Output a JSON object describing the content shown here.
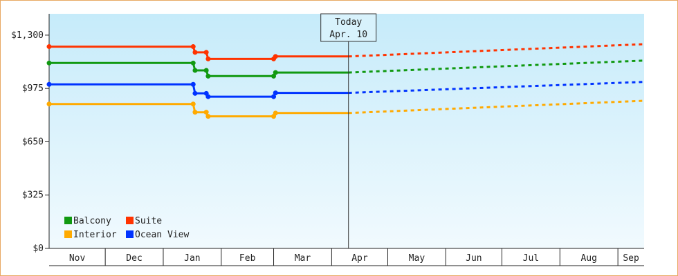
{
  "chart_data": {
    "type": "line",
    "x_range": [
      "2024-11-01",
      "2025-09-15"
    ],
    "ylim": [
      0,
      1430
    ],
    "y_ticks": [
      {
        "value": 0,
        "label": "$0"
      },
      {
        "value": 325,
        "label": "$325"
      },
      {
        "value": 650,
        "label": "$650"
      },
      {
        "value": 975,
        "label": "$975"
      },
      {
        "value": 1300,
        "label": "$1,300"
      }
    ],
    "month_ticks": [
      {
        "label": "Nov",
        "start": "2024-11-01",
        "end": "2024-12-01"
      },
      {
        "label": "Dec",
        "start": "2024-12-01",
        "end": "2025-01-01"
      },
      {
        "label": "Jan",
        "start": "2025-01-01",
        "end": "2025-02-01"
      },
      {
        "label": "Feb",
        "start": "2025-02-01",
        "end": "2025-03-01"
      },
      {
        "label": "Mar",
        "start": "2025-03-01",
        "end": "2025-04-01"
      },
      {
        "label": "Apr",
        "start": "2025-04-01",
        "end": "2025-05-01"
      },
      {
        "label": "May",
        "start": "2025-05-01",
        "end": "2025-06-01"
      },
      {
        "label": "Jun",
        "start": "2025-06-01",
        "end": "2025-07-01"
      },
      {
        "label": "Jul",
        "start": "2025-07-01",
        "end": "2025-08-01"
      },
      {
        "label": "Aug",
        "start": "2025-08-01",
        "end": "2025-09-01"
      },
      {
        "label": "Sep",
        "start": "2025-09-01",
        "end": "2025-09-15"
      }
    ],
    "today": {
      "date": "2025-04-10",
      "line1": "Today",
      "line2": "Apr. 10"
    },
    "grid": false,
    "legend_position": "bottom-left",
    "series": [
      {
        "name": "Suite",
        "color": "#ff3300",
        "points": [
          {
            "date": "2024-11-01",
            "value": 1230
          },
          {
            "date": "2025-01-17",
            "value": 1230
          },
          {
            "date": "2025-01-18",
            "value": 1195
          },
          {
            "date": "2025-01-24",
            "value": 1195
          },
          {
            "date": "2025-01-25",
            "value": 1155
          },
          {
            "date": "2025-03-01",
            "value": 1155
          },
          {
            "date": "2025-03-02",
            "value": 1170
          },
          {
            "date": "2025-04-10",
            "value": 1170
          }
        ],
        "forecast": [
          {
            "date": "2025-04-10",
            "value": 1170
          },
          {
            "date": "2025-09-15",
            "value": 1245
          }
        ]
      },
      {
        "name": "Balcony",
        "color": "#119911",
        "points": [
          {
            "date": "2024-11-01",
            "value": 1130
          },
          {
            "date": "2025-01-17",
            "value": 1130
          },
          {
            "date": "2025-01-18",
            "value": 1085
          },
          {
            "date": "2025-01-24",
            "value": 1085
          },
          {
            "date": "2025-01-25",
            "value": 1050
          },
          {
            "date": "2025-03-01",
            "value": 1050
          },
          {
            "date": "2025-03-02",
            "value": 1072
          },
          {
            "date": "2025-04-10",
            "value": 1072
          }
        ],
        "forecast": [
          {
            "date": "2025-04-10",
            "value": 1072
          },
          {
            "date": "2025-09-15",
            "value": 1145
          }
        ]
      },
      {
        "name": "Ocean View",
        "color": "#0033ff",
        "points": [
          {
            "date": "2024-11-01",
            "value": 1000
          },
          {
            "date": "2025-01-17",
            "value": 1000
          },
          {
            "date": "2025-01-18",
            "value": 945
          },
          {
            "date": "2025-01-24",
            "value": 945
          },
          {
            "date": "2025-01-25",
            "value": 925
          },
          {
            "date": "2025-03-01",
            "value": 925
          },
          {
            "date": "2025-03-02",
            "value": 948
          },
          {
            "date": "2025-04-10",
            "value": 948
          }
        ],
        "forecast": [
          {
            "date": "2025-04-10",
            "value": 948
          },
          {
            "date": "2025-09-15",
            "value": 1015
          }
        ]
      },
      {
        "name": "Interior",
        "color": "#ffaa00",
        "points": [
          {
            "date": "2024-11-01",
            "value": 880
          },
          {
            "date": "2025-01-17",
            "value": 880
          },
          {
            "date": "2025-01-18",
            "value": 830
          },
          {
            "date": "2025-01-24",
            "value": 830
          },
          {
            "date": "2025-01-25",
            "value": 805
          },
          {
            "date": "2025-03-01",
            "value": 805
          },
          {
            "date": "2025-03-02",
            "value": 825
          },
          {
            "date": "2025-04-10",
            "value": 825
          }
        ],
        "forecast": [
          {
            "date": "2025-04-10",
            "value": 825
          },
          {
            "date": "2025-09-15",
            "value": 900
          }
        ]
      }
    ],
    "legend": [
      {
        "name": "Balcony",
        "color": "#119911"
      },
      {
        "name": "Suite",
        "color": "#ff3300"
      },
      {
        "name": "Interior",
        "color": "#ffaa00"
      },
      {
        "name": "Ocean View",
        "color": "#0033ff"
      }
    ]
  }
}
